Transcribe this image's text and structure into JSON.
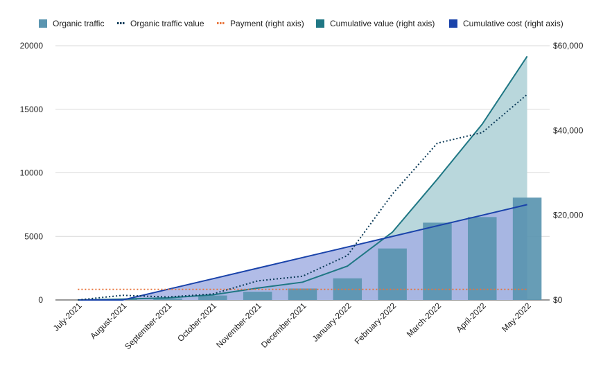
{
  "chart_data": {
    "type": "bar",
    "categories": [
      "July-2021",
      "August-2021",
      "September-2021",
      "October-2021",
      "November-2021",
      "December-2021",
      "January-2022",
      "February-2022",
      "March-2022",
      "April-2022",
      "May-2022"
    ],
    "left_axis": {
      "range": [
        0,
        20000
      ],
      "ticks": [
        "0",
        "5000",
        "10000",
        "15000",
        "20000"
      ]
    },
    "right_axis": {
      "range": [
        0,
        60000
      ],
      "ticks": [
        "$0",
        "$20,000",
        "$40,000",
        "$60,000"
      ]
    },
    "series": [
      {
        "name": "Organic traffic",
        "type": "bar",
        "axis": "left",
        "color": "#5a95b0",
        "values": [
          0,
          50,
          120,
          350,
          650,
          900,
          1700,
          4050,
          6080,
          6520,
          8050
        ]
      },
      {
        "name": "Organic traffic value",
        "type": "line",
        "style": "dotted",
        "axis": "right",
        "color": "#0c3b59",
        "values": [
          0,
          1100,
          700,
          1400,
          4500,
          5600,
          10500,
          25000,
          37000,
          39500,
          48500
        ]
      },
      {
        "name": "Payment (right axis)",
        "type": "line",
        "style": "dotted",
        "axis": "right",
        "color": "#e8743b",
        "values": [
          2500,
          2500,
          2500,
          2500,
          2500,
          2500,
          2500,
          2500,
          2500,
          2500,
          2500
        ]
      },
      {
        "name": "Cumulative value (right axis)",
        "type": "area",
        "axis": "right",
        "color": "#1f7784",
        "values": [
          0,
          200,
          500,
          1200,
          2800,
          4200,
          8000,
          16000,
          28500,
          41500,
          57500
        ]
      },
      {
        "name": "Cumulative cost (right axis)",
        "type": "area",
        "axis": "right",
        "color": "#1a43aa",
        "values": [
          0,
          0,
          2500,
          5000,
          7500,
          10000,
          12500,
          15000,
          17500,
          20000,
          22500
        ]
      }
    ],
    "grid": true,
    "legend_position": "top"
  },
  "colors": {
    "grid": "#d9d9d9",
    "axis": "#333333",
    "cum_value_fill": "#b9d7dc",
    "cum_cost_fill": "#a3b0e3"
  }
}
